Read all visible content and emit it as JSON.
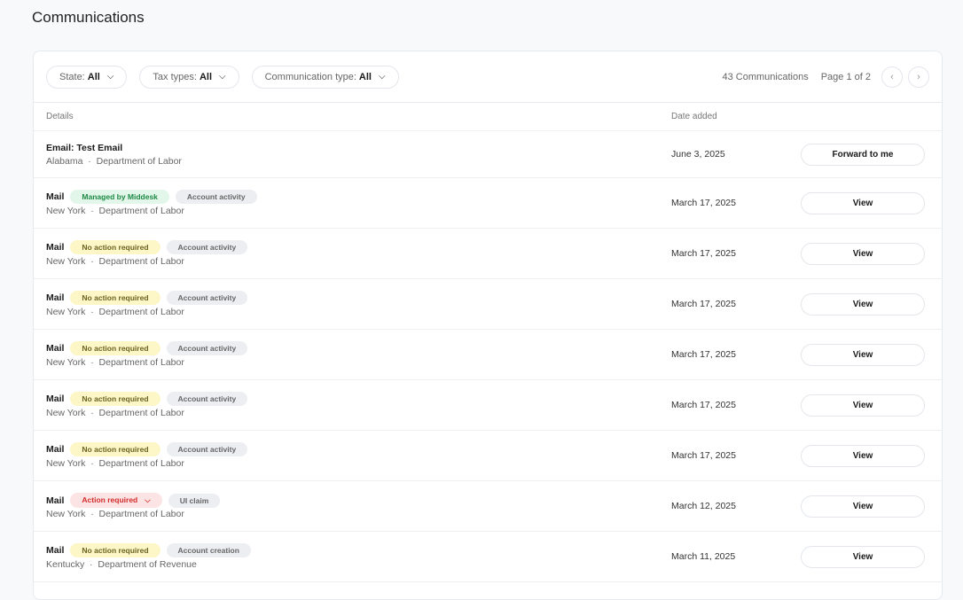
{
  "page_title": "Communications",
  "filters": [
    {
      "label": "State:",
      "value": "All"
    },
    {
      "label": "Tax types:",
      "value": "All"
    },
    {
      "label": "Communication type:",
      "value": "All"
    }
  ],
  "count": "43 Communications",
  "pagination": "Page 1 of 2",
  "columns": {
    "details": "Details",
    "date": "Date added"
  },
  "rows": [
    {
      "title": "Email: Test Email",
      "badges": [],
      "state": "Alabama",
      "agency": "Department of Labor",
      "date": "June 3, 2025",
      "action": "Forward to me"
    },
    {
      "title": "Mail",
      "badges": [
        {
          "text": "Managed by Middesk",
          "kind": "green"
        },
        {
          "text": "Account activity",
          "kind": "gray"
        }
      ],
      "state": "New York",
      "agency": "Department of Labor",
      "date": "March 17, 2025",
      "action": "View"
    },
    {
      "title": "Mail",
      "badges": [
        {
          "text": "No action required",
          "kind": "yellow"
        },
        {
          "text": "Account activity",
          "kind": "gray"
        }
      ],
      "state": "New York",
      "agency": "Department of Labor",
      "date": "March 17, 2025",
      "action": "View"
    },
    {
      "title": "Mail",
      "badges": [
        {
          "text": "No action required",
          "kind": "yellow"
        },
        {
          "text": "Account activity",
          "kind": "gray"
        }
      ],
      "state": "New York",
      "agency": "Department of Labor",
      "date": "March 17, 2025",
      "action": "View"
    },
    {
      "title": "Mail",
      "badges": [
        {
          "text": "No action required",
          "kind": "yellow"
        },
        {
          "text": "Account activity",
          "kind": "gray"
        }
      ],
      "state": "New York",
      "agency": "Department of Labor",
      "date": "March 17, 2025",
      "action": "View"
    },
    {
      "title": "Mail",
      "badges": [
        {
          "text": "No action required",
          "kind": "yellow"
        },
        {
          "text": "Account activity",
          "kind": "gray"
        }
      ],
      "state": "New York",
      "agency": "Department of Labor",
      "date": "March 17, 2025",
      "action": "View"
    },
    {
      "title": "Mail",
      "badges": [
        {
          "text": "No action required",
          "kind": "yellow"
        },
        {
          "text": "Account activity",
          "kind": "gray"
        }
      ],
      "state": "New York",
      "agency": "Department of Labor",
      "date": "March 17, 2025",
      "action": "View"
    },
    {
      "title": "Mail",
      "badges": [
        {
          "text": "Action required",
          "kind": "red",
          "dropdown": true
        },
        {
          "text": "UI claim",
          "kind": "gray"
        }
      ],
      "state": "New York",
      "agency": "Department of Labor",
      "date": "March 12, 2025",
      "action": "View"
    },
    {
      "title": "Mail",
      "badges": [
        {
          "text": "No action required",
          "kind": "yellow"
        },
        {
          "text": "Account creation",
          "kind": "gray"
        }
      ],
      "state": "Kentucky",
      "agency": "Department of Revenue",
      "date": "March 11, 2025",
      "action": "View"
    }
  ]
}
